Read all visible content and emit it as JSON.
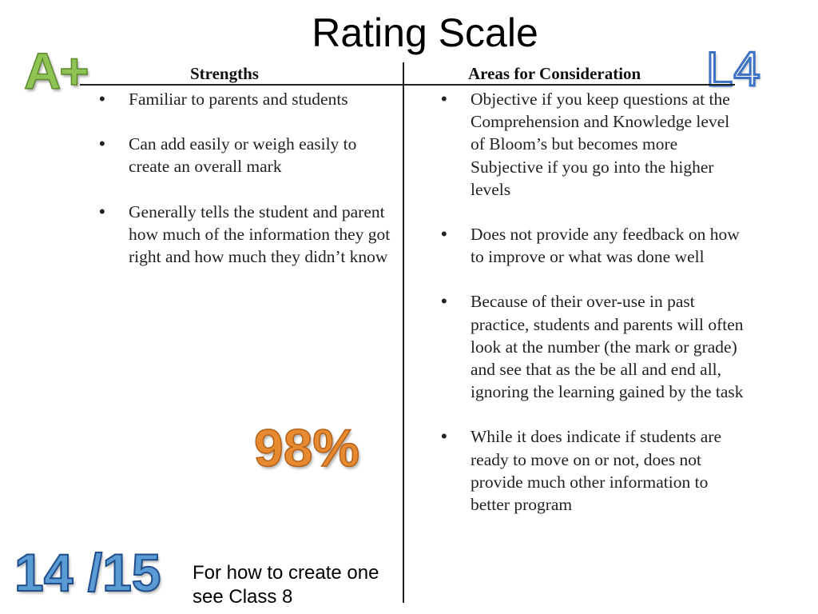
{
  "slide": {
    "title": "Rating Scale",
    "grade_letter": "A+",
    "grade_level": "L4",
    "left_header": "Strengths",
    "right_header": "Areas for Consideration",
    "strengths": [
      "Familiar to parents and students",
      "Can add easily or weigh easily to create an overall mark",
      "Generally tells the student and parent how much of the information they got right and how much they didn’t know"
    ],
    "considerations": [
      "Objective if you keep questions at the Comprehension and Knowledge level of Bloom’s but becomes more Subjective if you go into the higher levels",
      "Does not provide any feedback on how to improve or what was done well",
      "Because of their over-use in past practice, students and parents will often look at the number (the mark or grade) and see that as the be all and end all, ignoring the learning gained by the task",
      "While it does indicate if students are ready to move on or not, does not provide much other information to better program"
    ],
    "bullet_glyph": "•",
    "percent_example": "98%",
    "score_example": "14 /15",
    "note_line1": "For how to create one",
    "note_line2": "see Class 8"
  },
  "colors": {
    "grade_green": "#8fc454",
    "level_blue": "#3b72c4",
    "percent_orange": "#e7892f",
    "score_blue": "#5b9bd5"
  }
}
